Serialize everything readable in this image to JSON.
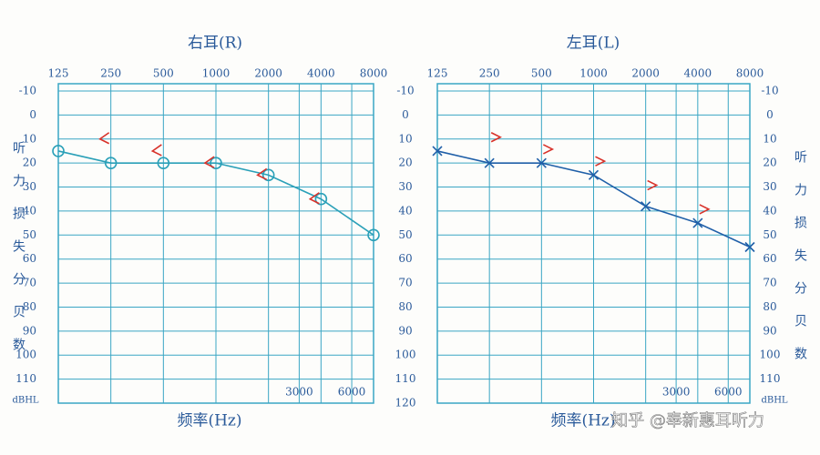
{
  "chart_data": [
    {
      "type": "line",
      "title": "右耳(R)",
      "x_label": "频率(Hz)",
      "y_label": "听力损失分贝数",
      "y_unit": "dBHL",
      "x": [
        125,
        250,
        500,
        1000,
        2000,
        4000,
        8000
      ],
      "xscale": "log",
      "xlim": [
        125,
        8000
      ],
      "xticks": [
        125,
        250,
        500,
        1000,
        2000,
        4000,
        8000
      ],
      "xticks_bottom": [
        3000,
        6000
      ],
      "ylim": [
        -10,
        120
      ],
      "yticks": [
        -10,
        0,
        10,
        20,
        30,
        40,
        50,
        60,
        70,
        80,
        90,
        100,
        110
      ],
      "y2lim": [
        -10,
        120
      ],
      "y2ticks": [
        -10,
        0,
        10,
        20,
        30,
        40,
        50,
        60,
        70,
        80,
        90,
        100,
        110,
        120
      ],
      "y_axis_side": "left",
      "grid": true,
      "grid_color": "#3aa6c4",
      "series": [
        {
          "color": "#2aa0b8",
          "marker": "o",
          "line": true,
          "values": [
            15,
            20,
            20,
            20,
            25,
            35,
            50
          ]
        },
        {
          "color": "#d8322a",
          "marker": "<",
          "line": false,
          "values": [
            null,
            10,
            15,
            20,
            25,
            35,
            null
          ]
        }
      ]
    },
    {
      "type": "line",
      "title": "左耳(L)",
      "x_label": "频率(Hz)",
      "y_label": "听力损失分贝数",
      "y_unit": "dBHL",
      "annotation": "知乎 @奉新惠耳听力",
      "x": [
        125,
        250,
        500,
        1000,
        2000,
        4000,
        8000
      ],
      "xscale": "log",
      "xlim": [
        125,
        8000
      ],
      "xticks": [
        125,
        250,
        500,
        1000,
        2000,
        4000,
        8000
      ],
      "xticks_bottom": [
        3000,
        6000
      ],
      "ylim": [
        -10,
        120
      ],
      "yticks": [
        -10,
        0,
        10,
        20,
        30,
        40,
        50,
        60,
        70,
        80,
        90,
        100,
        110
      ],
      "y_axis_side": "right",
      "grid": true,
      "grid_color": "#3aa6c4",
      "series": [
        {
          "color": "#1f5fa8",
          "marker": "x",
          "line": true,
          "values": [
            15,
            20,
            20,
            25,
            38,
            45,
            55
          ]
        },
        {
          "color": "#d8322a",
          "marker": ">",
          "line": false,
          "values": [
            null,
            10,
            15,
            20,
            30,
            40,
            null
          ]
        }
      ]
    }
  ]
}
